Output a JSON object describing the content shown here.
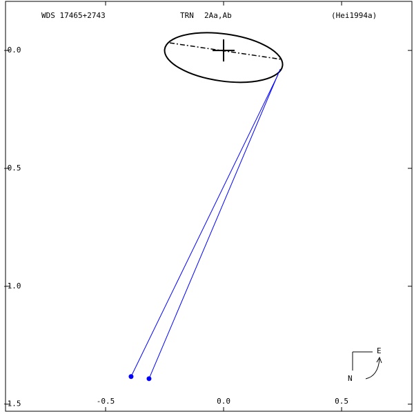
{
  "chart_data": {
    "type": "orbit",
    "title": "WDS 17465+2743",
    "subtitle": "TRN",
    "pair": "2Aa,Ab",
    "reference": "(Hei1994a)",
    "xlim": [
      -0.924,
      0.798
    ],
    "ylim": [
      -1.53,
      0.208
    ],
    "xticks": [
      -0.5,
      {
        "value": 0,
        "label": "0.0"
      },
      0.5
    ],
    "yticks": [
      {
        "value": 0,
        "label": "-0.0"
      },
      -0.5,
      {
        "value": -1,
        "label": "-1.0"
      },
      -1.5
    ],
    "orbit": {
      "center_x": 0,
      "center_y": -0.03,
      "semi_major": 0.252,
      "semi_minor": 0.1,
      "angle": -8,
      "color": "#000000"
    },
    "node_line": {
      "x": [
        -0.228,
        0.246
      ],
      "y": [
        0.032,
        -0.038
      ]
    },
    "observations": {
      "color": "#0000ff",
      "x": [
        -0.392,
        -0.316
      ],
      "y": [
        -1.383,
        -1.392
      ],
      "predicted_x": [
        0.231,
        0.24
      ],
      "predicted_y": [
        -0.102,
        -0.079
      ]
    },
    "compass": {
      "east": "E",
      "north": "N"
    }
  }
}
